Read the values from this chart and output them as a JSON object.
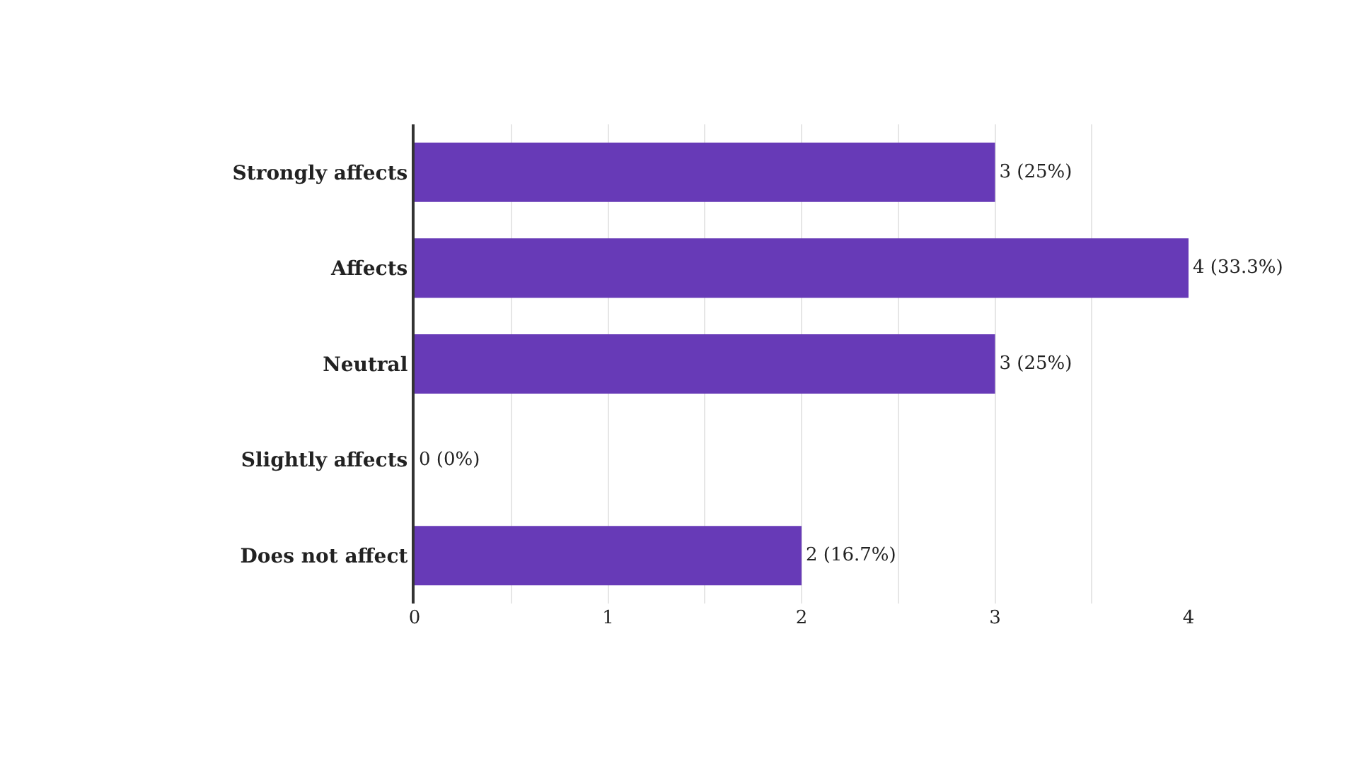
{
  "chart_data": {
    "type": "bar",
    "orientation": "horizontal",
    "categories": [
      "Strongly affects",
      "Affects",
      "Neutral",
      "Slightly affects",
      "Does not affect"
    ],
    "values": [
      3,
      4,
      3,
      0,
      2
    ],
    "value_labels": [
      "3 (25%)",
      "4 (33.3%)",
      "3 (25%)",
      "0 (0%)",
      "2 (16.7%)"
    ],
    "color": "#673ab7",
    "xlim": [
      0,
      4
    ],
    "xticks": [
      0,
      {
        "value": 0.5,
        "label": null
      },
      1,
      {
        "value": 1.5,
        "label": null
      },
      2,
      {
        "value": 2.5,
        "label": null
      },
      3,
      {
        "value": 3.5,
        "label": null
      },
      4
    ],
    "grid": "x"
  }
}
